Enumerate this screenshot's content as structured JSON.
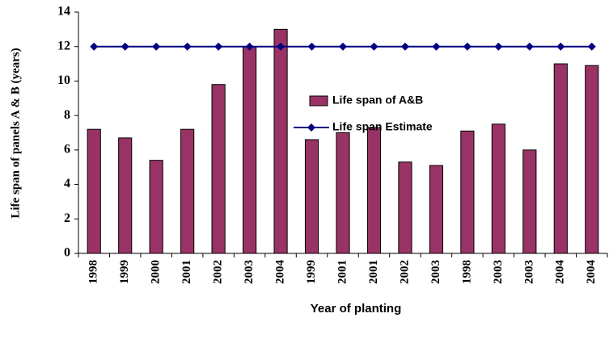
{
  "chart_data": {
    "type": "bar",
    "xlabel": "Year of planting",
    "ylabel": "Life span of panels A & B (years)",
    "categories": [
      "1998",
      "1999",
      "2000",
      "2001",
      "2002",
      "2003",
      "2004",
      "1999",
      "2001",
      "2001",
      "2002",
      "2003",
      "1998",
      "2003",
      "2003",
      "2004",
      "2004"
    ],
    "series": [
      {
        "name": "Life span of A&B",
        "type": "bar",
        "color": "#993366",
        "values": [
          7.2,
          6.7,
          5.4,
          7.2,
          9.8,
          12,
          13,
          6.6,
          7,
          7.3,
          5.3,
          5.1,
          7.1,
          7.5,
          6,
          11,
          10.9
        ]
      },
      {
        "name": "Life span Estimate",
        "type": "line",
        "color": "#000080",
        "values": [
          12,
          12,
          12,
          12,
          12,
          12,
          12,
          12,
          12,
          12,
          12,
          12,
          12,
          12,
          12,
          12,
          12
        ]
      }
    ],
    "ylim": [
      0,
      14
    ],
    "yticks": [
      0,
      2,
      4,
      6,
      8,
      10,
      12,
      14
    ]
  }
}
